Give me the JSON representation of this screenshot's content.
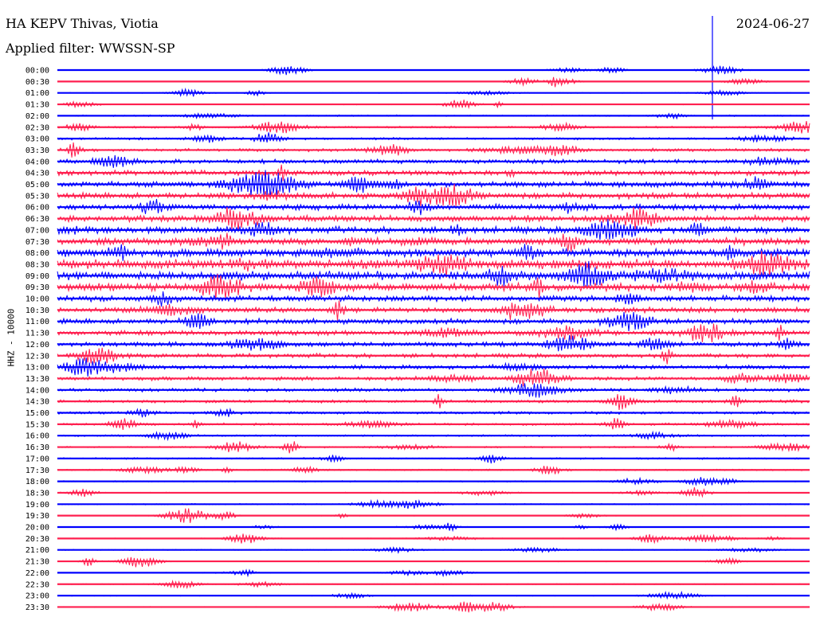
{
  "header": {
    "station": "HA KEPV Thivas, Viotia",
    "filter": "Applied filter: WWSSN-SP",
    "date": "2024-06-27",
    "channel": "HHZ - 10000"
  },
  "chart_data": {
    "type": "line",
    "title": "HA KEPV Thivas, Viotia",
    "subtitle": "Applied filter: WWSSN-SP",
    "ylabel": "HHZ - 10000",
    "series_colors": [
      "#0000ff",
      "#ff1f4f"
    ],
    "rows": [
      "00:00",
      "00:30",
      "01:00",
      "01:30",
      "02:00",
      "02:30",
      "03:00",
      "03:30",
      "04:00",
      "04:30",
      "05:00",
      "05:30",
      "06:00",
      "06:30",
      "07:00",
      "07:30",
      "08:00",
      "08:30",
      "09:00",
      "09:30",
      "10:00",
      "10:30",
      "11:00",
      "11:30",
      "12:00",
      "12:30",
      "13:00",
      "13:30",
      "14:00",
      "14:30",
      "15:00",
      "15:30",
      "16:00",
      "16:30",
      "17:00",
      "17:30",
      "18:00",
      "18:30",
      "19:00",
      "19:30",
      "20:00",
      "20:30",
      "21:00",
      "21:30",
      "22:00",
      "22:30",
      "23:00",
      "23:30"
    ],
    "noise_level": [
      0.3,
      0.3,
      0.4,
      0.5,
      0.8,
      1.0,
      1.2,
      1.6,
      2.2,
      2.6,
      3.0,
      3.2,
      3.0,
      3.2,
      3.4,
      3.6,
      4.2,
      4.8,
      4.5,
      4.0,
      3.0,
      2.8,
      2.8,
      2.6,
      2.4,
      2.2,
      2.2,
      2.0,
      1.8,
      1.6,
      1.4,
      1.2,
      1.0,
      0.9,
      0.9,
      0.8,
      0.7,
      0.6,
      0.6,
      0.5,
      0.5,
      0.5,
      0.5,
      0.5,
      0.5,
      0.5,
      0.5,
      0.5
    ]
  }
}
